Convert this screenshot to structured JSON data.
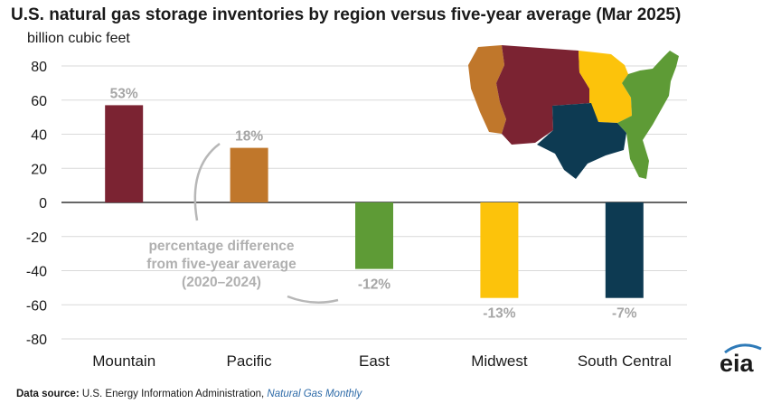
{
  "chart_data": {
    "type": "bar",
    "title": "U.S. natural gas storage inventories by region versus five-year average (Mar 2025)",
    "ylabel": "billion cubic feet",
    "ylim": [
      -80,
      80
    ],
    "yticks": [
      80,
      60,
      40,
      20,
      0,
      -20,
      -40,
      -60,
      -80
    ],
    "grid": true,
    "categories": [
      "Mountain",
      "Pacific",
      "East",
      "Midwest",
      "South Central"
    ],
    "values": [
      57,
      32,
      -39,
      -56,
      -56
    ],
    "percent_labels": [
      "53%",
      "18%",
      "-12%",
      "-13%",
      "-7%"
    ],
    "colors": [
      "#7b2332",
      "#c0772b",
      "#5e9b36",
      "#fcc30b",
      "#0d3a52"
    ],
    "annotation": [
      "percentage difference",
      "from five-year average",
      "(2020–2024)"
    ]
  },
  "source": {
    "label": "Data source:",
    "agency": "U.S. Energy Information Administration,",
    "publication": "Natural Gas Monthly"
  },
  "logo": {
    "text": "eia",
    "icon": "eia-logo-icon"
  },
  "map": {
    "icon": "us-region-map-icon"
  }
}
